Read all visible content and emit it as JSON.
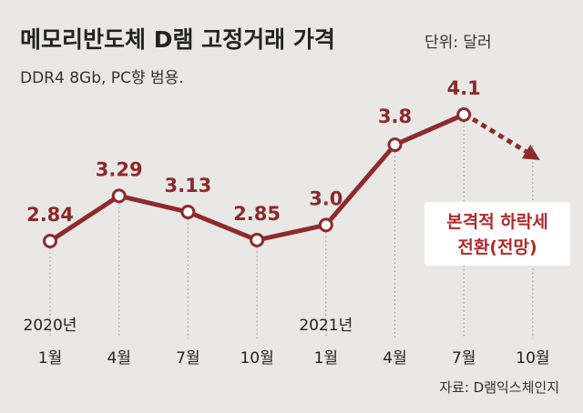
{
  "header": {
    "title": "메모리반도체 D램 고정거래 가격",
    "unit": "단위: 달러",
    "subtitle": "DDR4 8Gb, PC향 범용."
  },
  "chart_data": {
    "type": "line",
    "title": "메모리반도체 D램 고정거래 가격",
    "ylabel": "달러",
    "categories": [
      "1월",
      "4월",
      "7월",
      "10월",
      "1월",
      "4월",
      "7월",
      "10월"
    ],
    "year_labels": [
      {
        "index": 0,
        "label": "2020년"
      },
      {
        "index": 4,
        "label": "2021년"
      }
    ],
    "series": [
      {
        "name": "DDR4 8Gb",
        "values": [
          2.84,
          3.29,
          3.13,
          2.85,
          3.0,
          3.8,
          4.1,
          null
        ],
        "value_labels": [
          "2.84",
          "3.29",
          "3.13",
          "2.85",
          "3.0",
          "3.8",
          "4.1",
          ""
        ]
      }
    ],
    "forecast": {
      "from_index": 6,
      "to_index": 7,
      "direction": "down",
      "annotation": [
        "본격적 하락세",
        "전환(전망)"
      ]
    },
    "ylim": [
      2.0,
      4.4
    ],
    "grid": "vertical-dotted"
  },
  "footer": {
    "source": "자료: D램익스체인지"
  },
  "colors": {
    "line": "#8f2b2b",
    "marker_fill": "#ffffff",
    "annotation": "#b02a2a",
    "background": "#e9e8e6",
    "annotation_box": "#ffffff"
  }
}
